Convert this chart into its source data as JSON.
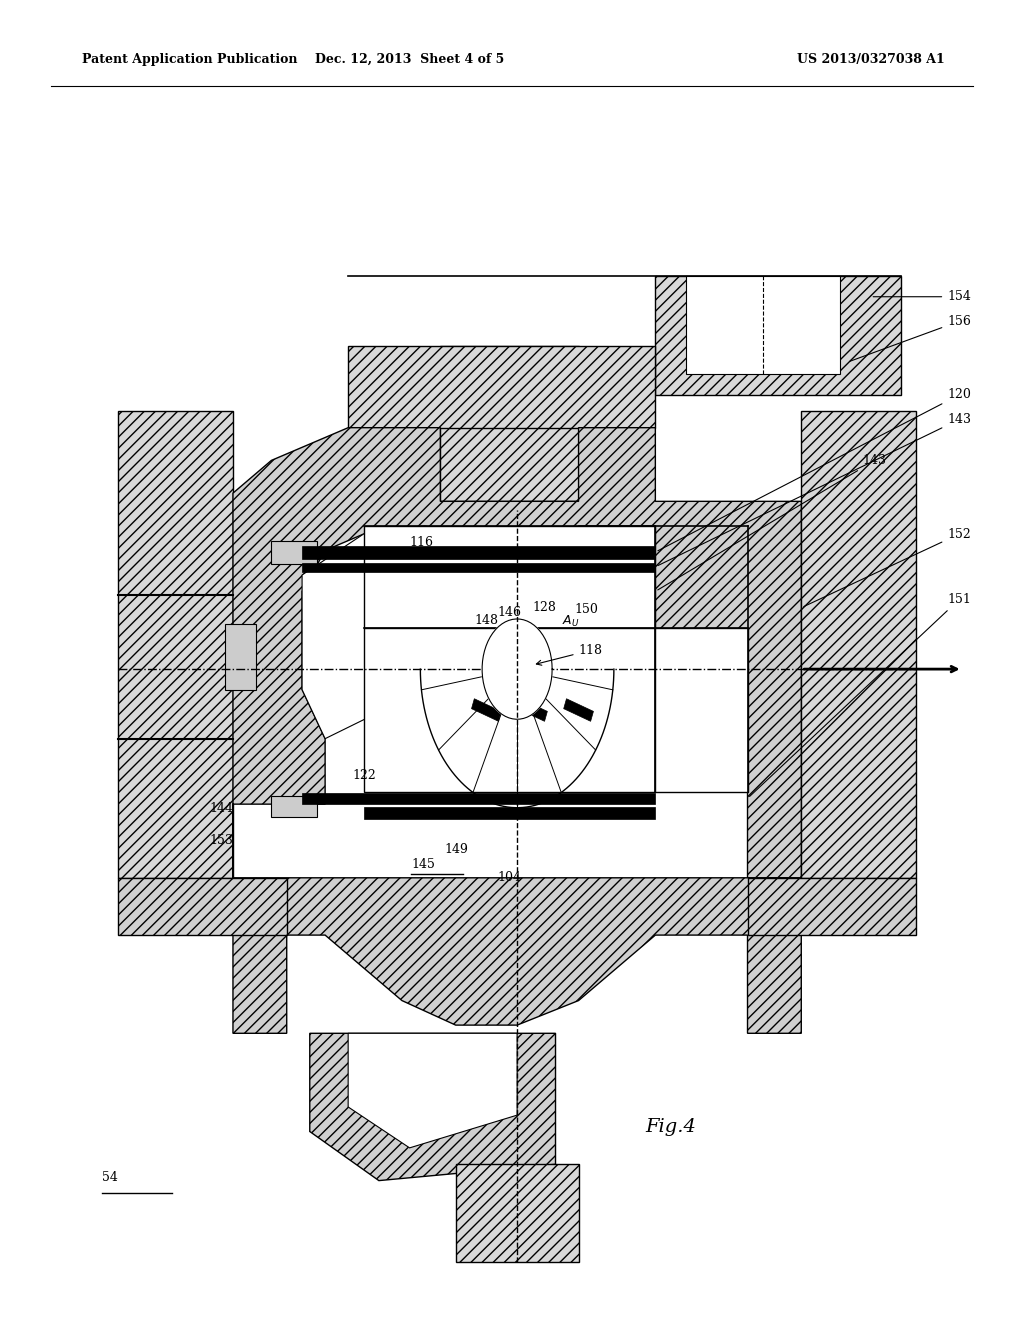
{
  "bg_color": "#ffffff",
  "line_color": "#000000",
  "title_left": "Patent Application Publication",
  "title_mid": "Dec. 12, 2013  Sheet 4 of 5",
  "title_right": "US 2013/0327038 A1",
  "fig_label": "Fig.4",
  "part_label": "54"
}
